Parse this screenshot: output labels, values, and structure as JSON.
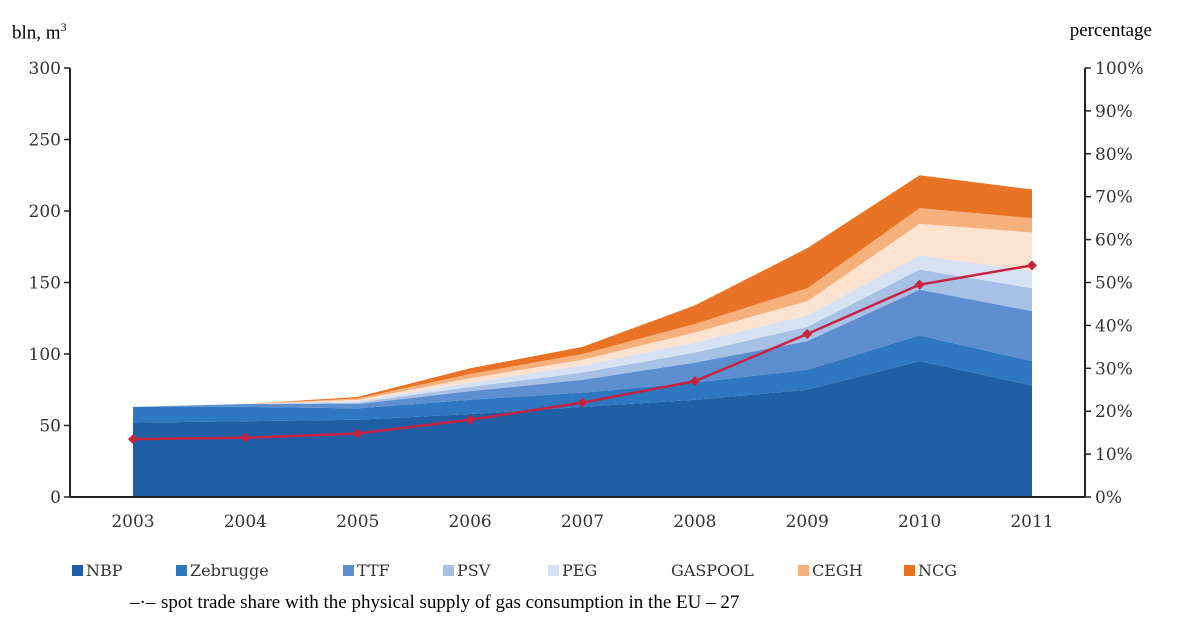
{
  "chart_data": {
    "type": "area",
    "title": "",
    "y_left_label": "bln, m",
    "y_left_label_sup": "3",
    "y_right_label": "percentage",
    "categories": [
      "2003",
      "2004",
      "2005",
      "2006",
      "2007",
      "2008",
      "2009",
      "2010",
      "2011"
    ],
    "ylim": [
      0,
      300
    ],
    "y_ticks": [
      "0",
      "50",
      "100",
      "150",
      "200",
      "250",
      "300"
    ],
    "y2lim": [
      0,
      100
    ],
    "y2_ticks": [
      "0%",
      "10%",
      "20%",
      "30%",
      "40%",
      "50%",
      "60%",
      "70%",
      "80%",
      "90%",
      "100%"
    ],
    "stacked": true,
    "grid": false,
    "legend_position": "bottom",
    "series": [
      {
        "name": "NBP",
        "color": "#1f5fa6",
        "values": [
          52,
          53,
          54,
          58,
          63,
          68,
          75,
          95,
          78
        ]
      },
      {
        "name": "Zebrugge",
        "color": "#2f77c0",
        "values": [
          11,
          10,
          8,
          10,
          10,
          12,
          14,
          18,
          17
        ]
      },
      {
        "name": "TTF",
        "color": "#5d8fd0",
        "values": [
          0,
          2,
          3,
          6,
          9,
          14,
          20,
          32,
          35
        ]
      },
      {
        "name": "PSV",
        "color": "#a6c0e6",
        "values": [
          0,
          0,
          1,
          3,
          5,
          7,
          10,
          14,
          16
        ]
      },
      {
        "name": "PEG",
        "color": "#d6e2f4",
        "values": [
          0,
          0,
          1,
          3,
          5,
          7,
          8,
          10,
          12
        ]
      },
      {
        "name": "GASPOOL",
        "color": "#fbe3cf",
        "values": [
          0,
          0,
          1,
          3,
          4,
          7,
          10,
          22,
          27
        ]
      },
      {
        "name": "CEGH",
        "color": "#f6b07c",
        "values": [
          0,
          0,
          1,
          3,
          4,
          6,
          9,
          11,
          10
        ]
      },
      {
        "name": "NCG",
        "color": "#e97324",
        "values": [
          0,
          0,
          1,
          4,
          5,
          13,
          28,
          23,
          20
        ]
      }
    ],
    "line_series": {
      "name": "spot trade share with the physical supply of gas consumption in the EU – 27",
      "legend_symbol": "–·–",
      "color": "#c8223e",
      "axis": "right",
      "values": [
        13.5,
        13.8,
        14.8,
        18,
        22,
        27,
        38,
        49.5,
        54
      ]
    }
  }
}
